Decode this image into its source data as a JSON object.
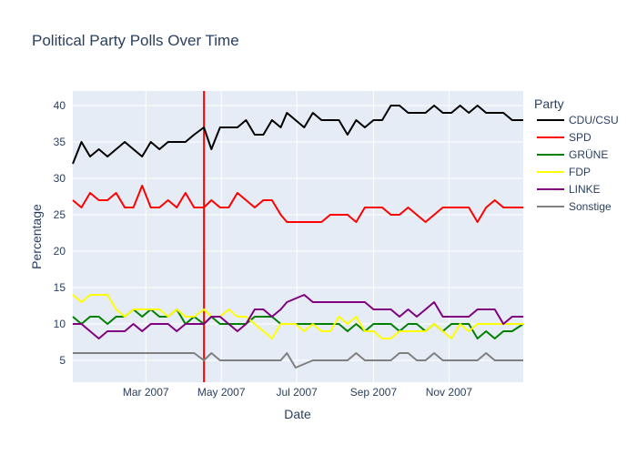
{
  "chart_data": {
    "type": "line",
    "title": "Political Party Polls Over Time",
    "xlabel": "Date",
    "ylabel": "Percentage",
    "x_range": [
      "2007-01-01",
      "2007-12-31"
    ],
    "ylim": [
      2,
      42
    ],
    "yticks": [
      5,
      10,
      15,
      20,
      25,
      30,
      35,
      40
    ],
    "xticks": [
      {
        "date": "2007-03-01",
        "label": "Mar 2007"
      },
      {
        "date": "2007-05-01",
        "label": "May 2007"
      },
      {
        "date": "2007-07-01",
        "label": "Jul 2007"
      },
      {
        "date": "2007-09-01",
        "label": "Sep 2007"
      },
      {
        "date": "2007-11-01",
        "label": "Nov 2007"
      }
    ],
    "grid": true,
    "legend_title": "Party",
    "legend_position": "right",
    "vertical_marker": {
      "date": "2007-04-17",
      "color": "#ff0000"
    },
    "dates": [
      "2007-01-01",
      "2007-01-08",
      "2007-01-15",
      "2007-01-22",
      "2007-01-29",
      "2007-02-05",
      "2007-02-12",
      "2007-02-19",
      "2007-02-26",
      "2007-03-05",
      "2007-03-12",
      "2007-03-19",
      "2007-03-26",
      "2007-04-02",
      "2007-04-09",
      "2007-04-17",
      "2007-04-23",
      "2007-04-30",
      "2007-05-07",
      "2007-05-14",
      "2007-05-21",
      "2007-05-28",
      "2007-06-04",
      "2007-06-11",
      "2007-06-18",
      "2007-06-23",
      "2007-06-30",
      "2007-07-07",
      "2007-07-14",
      "2007-07-21",
      "2007-07-28",
      "2007-08-04",
      "2007-08-11",
      "2007-08-18",
      "2007-08-25",
      "2007-09-01",
      "2007-09-08",
      "2007-09-15",
      "2007-09-22",
      "2007-09-29",
      "2007-10-06",
      "2007-10-13",
      "2007-10-20",
      "2007-10-27",
      "2007-11-03",
      "2007-11-10",
      "2007-11-17",
      "2007-11-24",
      "2007-12-01",
      "2007-12-08",
      "2007-12-15",
      "2007-12-22",
      "2007-12-31"
    ],
    "series": [
      {
        "name": "CDU/CSU",
        "color": "#000000",
        "values": [
          32,
          35,
          33,
          34,
          33,
          34,
          35,
          34,
          33,
          35,
          34,
          35,
          35,
          35,
          36,
          37,
          34,
          37,
          37,
          37,
          38,
          36,
          36,
          38,
          37,
          39,
          38,
          37,
          39,
          38,
          38,
          38,
          36,
          38,
          37,
          38,
          38,
          40,
          40,
          39,
          39,
          39,
          40,
          39,
          39,
          40,
          39,
          40,
          39,
          39,
          39,
          38,
          38
        ]
      },
      {
        "name": "SPD",
        "color": "#ff0000",
        "values": [
          27,
          26,
          28,
          27,
          27,
          28,
          26,
          26,
          29,
          26,
          26,
          27,
          26,
          28,
          26,
          26,
          27,
          26,
          26,
          28,
          27,
          26,
          27,
          27,
          25,
          24,
          24,
          24,
          24,
          24,
          25,
          25,
          25,
          24,
          26,
          26,
          26,
          25,
          25,
          26,
          25,
          24,
          25,
          26,
          26,
          26,
          26,
          24,
          26,
          27,
          26,
          26,
          26
        ]
      },
      {
        "name": "GRÜNE",
        "color": "#008000",
        "values": [
          11,
          10,
          11,
          11,
          10,
          11,
          11,
          12,
          11,
          12,
          11,
          11,
          12,
          10,
          11,
          10,
          11,
          10,
          10,
          10,
          10,
          11,
          11,
          11,
          10,
          10,
          10,
          10,
          10,
          10,
          10,
          10,
          9,
          10,
          9,
          10,
          10,
          10,
          9,
          10,
          10,
          9,
          10,
          9,
          10,
          10,
          10,
          8,
          9,
          8,
          9,
          9,
          10
        ]
      },
      {
        "name": "FDP",
        "color": "#ffff00",
        "values": [
          14,
          13,
          14,
          14,
          14,
          12,
          11,
          12,
          12,
          12,
          12,
          11,
          12,
          11,
          11,
          12,
          11,
          11,
          12,
          11,
          11,
          10,
          9,
          8,
          10,
          10,
          10,
          9,
          10,
          9,
          9,
          11,
          10,
          11,
          9,
          9,
          8,
          8,
          9,
          9,
          9,
          9,
          10,
          9,
          8,
          10,
          9,
          10,
          10,
          10,
          10,
          10,
          10
        ]
      },
      {
        "name": "LINKE",
        "color": "#800080",
        "values": [
          10,
          10,
          9,
          8,
          9,
          9,
          9,
          10,
          9,
          10,
          10,
          10,
          9,
          10,
          10,
          10,
          11,
          11,
          10,
          9,
          10,
          12,
          12,
          11,
          12,
          13,
          13.5,
          14,
          13,
          13,
          13,
          13,
          13,
          13,
          13,
          12,
          12,
          12,
          11,
          12,
          11,
          12,
          13,
          11,
          11,
          11,
          11,
          12,
          12,
          12,
          10,
          11,
          11
        ]
      },
      {
        "name": "Sonstige",
        "color": "#808080",
        "values": [
          6,
          6,
          6,
          6,
          6,
          6,
          6,
          6,
          6,
          6,
          6,
          6,
          6,
          6,
          6,
          5,
          6,
          5,
          5,
          5,
          5,
          5,
          5,
          5,
          5,
          6,
          4,
          4.5,
          5,
          5,
          5,
          5,
          5,
          6,
          5,
          5,
          5,
          5,
          6,
          6,
          5,
          5,
          6,
          5,
          5,
          5,
          5,
          5,
          6,
          5,
          5,
          5,
          5
        ]
      }
    ]
  }
}
